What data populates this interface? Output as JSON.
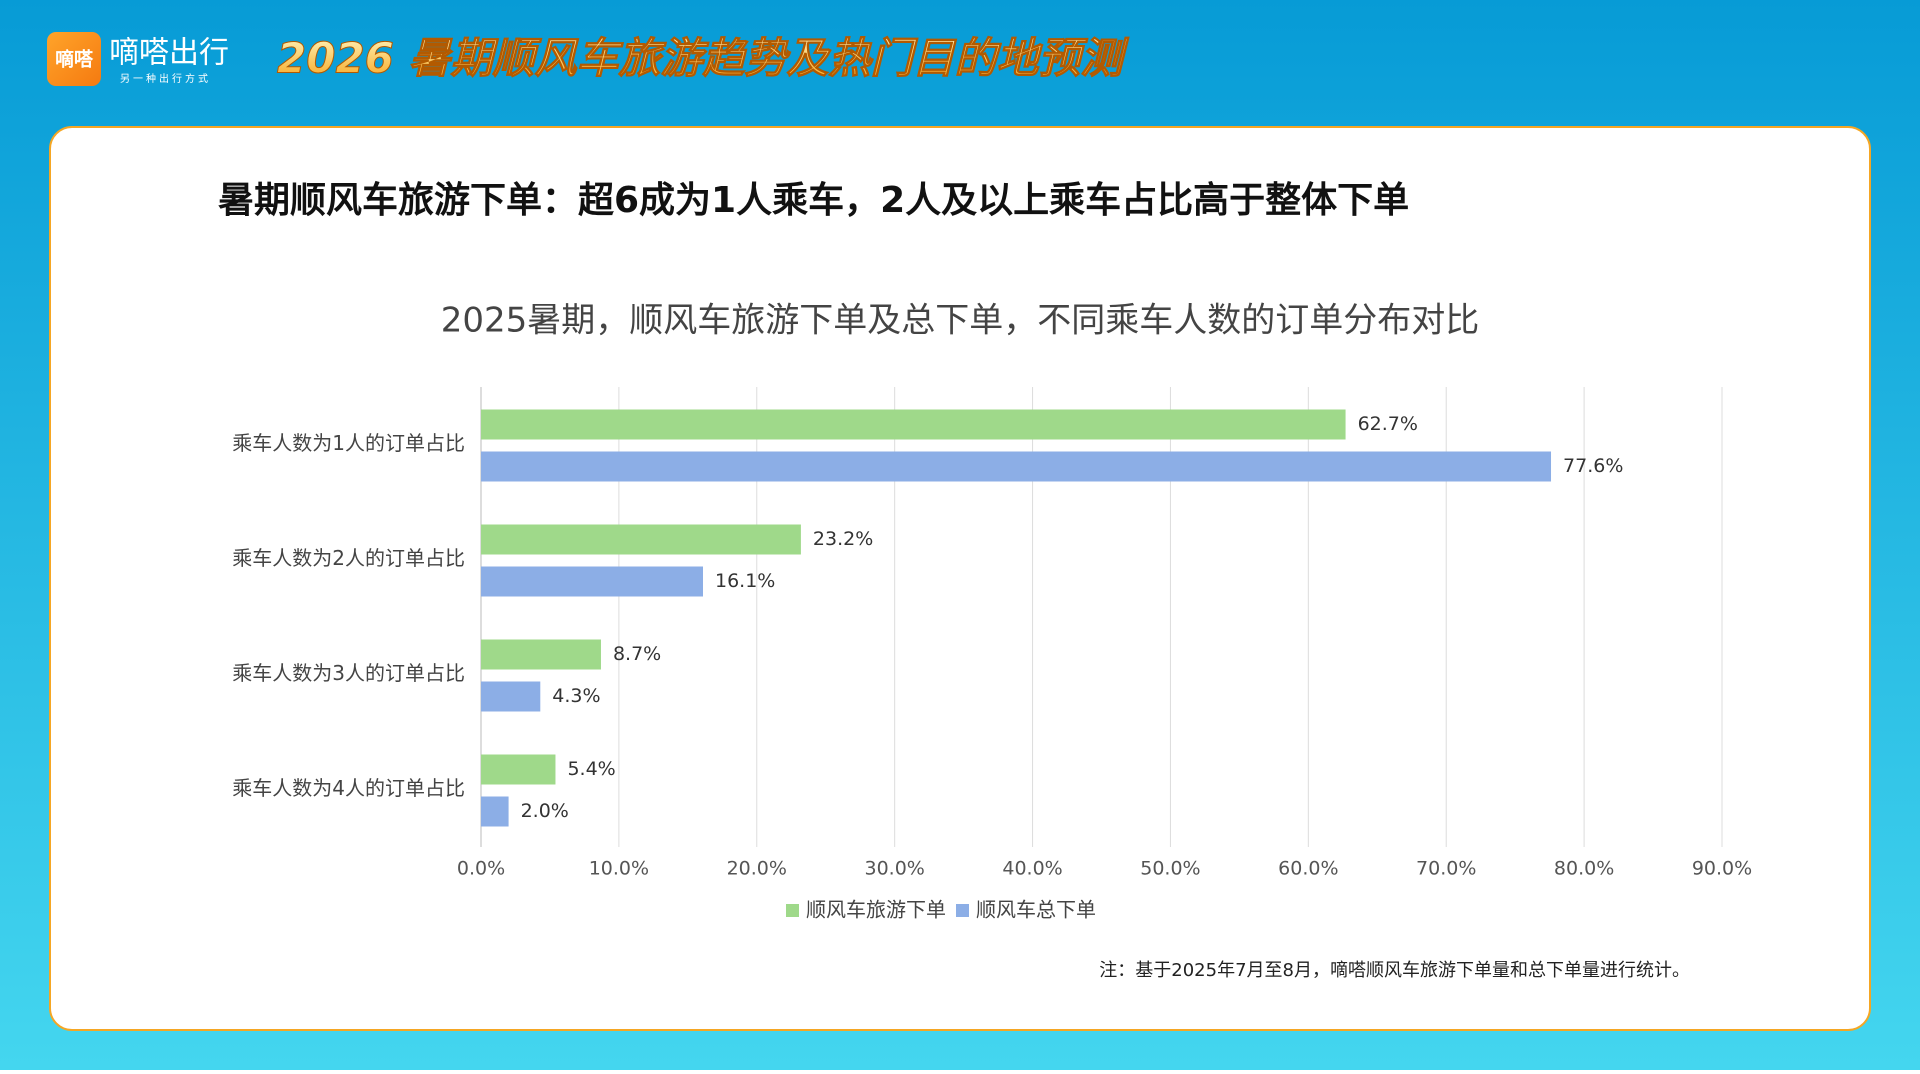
{
  "header": {
    "logo": "嘀嗒",
    "brand": "嘀嗒出行",
    "slogan": "另一种出行方式",
    "title": "2026 暑期顺风车旅游趋势及热门目的地预测"
  },
  "headline": "暑期顺风车旅游下单：超6成为1人乘车，2人及以上乘车占比高于整体下单",
  "note": "注：基于2025年7月至8月，嘀嗒顺风车旅游下单量和总下单量进行统计。",
  "chart_data": {
    "type": "hbar",
    "title": "2025暑期，顺风车旅游下单及总下单，不同乘车人数的订单分布对比",
    "categories": [
      "乘车人数为1人的订单占比",
      "乘车人数为2人的订单占比",
      "乘车人数为3人的订单占比",
      "乘车人数为4人的订单占比"
    ],
    "series": [
      {
        "name": "顺风车旅游下单",
        "color": "#9fd98a",
        "values": [
          62.7,
          23.2,
          8.7,
          5.4
        ],
        "value_labels": [
          "62.7%",
          "23.2%",
          "8.7%",
          "5.4%"
        ]
      },
      {
        "name": "顺风车总下单",
        "color": "#8caee6",
        "values": [
          77.6,
          16.1,
          4.3,
          2.0
        ],
        "value_labels": [
          "77.6%",
          "16.1%",
          "4.3%",
          "2.0%"
        ]
      }
    ],
    "xlim": [
      0,
      90
    ],
    "xticks": [
      {
        "value": 0,
        "label": "0.0%"
      },
      {
        "value": 10,
        "label": "10.0%"
      },
      {
        "value": 20,
        "label": "20.0%"
      },
      {
        "value": 30,
        "label": "30.0%"
      },
      {
        "value": 40,
        "label": "40.0%"
      },
      {
        "value": 50,
        "label": "50.0%"
      },
      {
        "value": 60,
        "label": "60.0%"
      },
      {
        "value": 70,
        "label": "70.0%"
      },
      {
        "value": 80,
        "label": "80.0%"
      },
      {
        "value": 90,
        "label": "90.0%"
      }
    ],
    "grid": true,
    "legend": "bottom"
  }
}
